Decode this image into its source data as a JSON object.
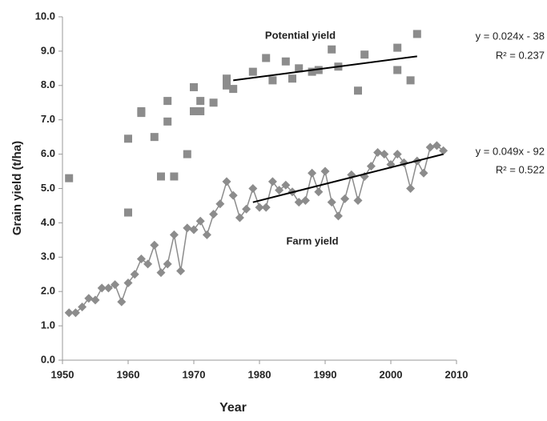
{
  "chart_data": {
    "type": "line",
    "xlabel": "Year",
    "ylabel": "Grain yield (t/ha)",
    "xlim": [
      1950,
      2010
    ],
    "xticks": [
      1950,
      1960,
      1970,
      1980,
      1990,
      2000,
      2010
    ],
    "ylim": [
      0,
      10
    ],
    "yticks": [
      {
        "value": 0,
        "label": "0.0"
      },
      {
        "value": 1,
        "label": "1.0"
      },
      {
        "value": 2,
        "label": "2.0"
      },
      {
        "value": 3,
        "label": "3.0"
      },
      {
        "value": 4,
        "label": "4.0"
      },
      {
        "value": 5,
        "label": "5.0"
      },
      {
        "value": 6,
        "label": "6.0"
      },
      {
        "value": 7,
        "label": "7.0"
      },
      {
        "value": 8,
        "label": "8.0"
      },
      {
        "value": 9,
        "label": "9.0"
      },
      {
        "value": 10,
        "label": "10.0"
      }
    ],
    "series": [
      {
        "name": "Potential yield",
        "color": "#8c8c8c",
        "mode": "markers",
        "marker": "square",
        "x": [
          1951,
          1960,
          1960,
          1962,
          1962,
          1964,
          1965,
          1966,
          1966,
          1967,
          1969,
          1970,
          1970,
          1971,
          1971,
          1973,
          1975,
          1975,
          1976,
          1979,
          1981,
          1982,
          1984,
          1985,
          1986,
          1988,
          1989,
          1991,
          1992,
          1995,
          1996,
          2001,
          2001,
          2003,
          2004
        ],
        "values": [
          5.3,
          6.45,
          4.3,
          7.2,
          7.25,
          6.5,
          5.35,
          7.55,
          6.95,
          5.35,
          6.0,
          7.95,
          7.25,
          7.25,
          7.55,
          7.5,
          8.2,
          8.0,
          7.9,
          8.4,
          8.8,
          8.15,
          8.7,
          8.2,
          8.5,
          8.4,
          8.45,
          9.05,
          8.55,
          7.85,
          8.9,
          9.1,
          8.45,
          8.15,
          9.5
        ],
        "trendline": {
          "color": "#000000",
          "x": [
            1976,
            2004
          ],
          "values": [
            8.15,
            8.85
          ],
          "equation": "y = 0.024x - 38",
          "r2": "R² = 0.237"
        }
      },
      {
        "name": "Farm yield",
        "color": "#8c8c8c",
        "mode": "line+markers",
        "marker": "diamond",
        "x": [
          1951,
          1952,
          1953,
          1954,
          1955,
          1956,
          1957,
          1958,
          1959,
          1960,
          1961,
          1962,
          1963,
          1964,
          1965,
          1966,
          1967,
          1968,
          1969,
          1970,
          1971,
          1972,
          1973,
          1974,
          1975,
          1976,
          1977,
          1978,
          1979,
          1980,
          1981,
          1982,
          1983,
          1984,
          1985,
          1986,
          1987,
          1988,
          1989,
          1990,
          1991,
          1992,
          1993,
          1994,
          1995,
          1996,
          1997,
          1998,
          1999,
          2000,
          2001,
          2002,
          2003,
          2004,
          2005,
          2006,
          2007,
          2008
        ],
        "values": [
          1.38,
          1.38,
          1.55,
          1.8,
          1.75,
          2.1,
          2.1,
          2.2,
          1.7,
          2.25,
          2.5,
          2.95,
          2.8,
          3.35,
          2.55,
          2.8,
          3.65,
          2.6,
          3.85,
          3.8,
          4.05,
          3.65,
          4.25,
          4.55,
          5.2,
          4.8,
          4.15,
          4.4,
          5.0,
          4.45,
          4.45,
          5.2,
          4.95,
          5.1,
          4.9,
          4.6,
          4.65,
          5.45,
          4.9,
          5.5,
          4.6,
          4.2,
          4.7,
          5.4,
          4.65,
          5.35,
          5.65,
          6.05,
          6.0,
          5.7,
          6.0,
          5.75,
          5.0,
          5.8,
          5.45,
          6.2,
          6.25,
          6.1
        ],
        "trendline": {
          "color": "#000000",
          "x": [
            1979,
            2008
          ],
          "values": [
            4.6,
            6.0
          ],
          "equation": "y = 0.049x - 92",
          "r2": "R² = 0.522"
        }
      }
    ]
  }
}
